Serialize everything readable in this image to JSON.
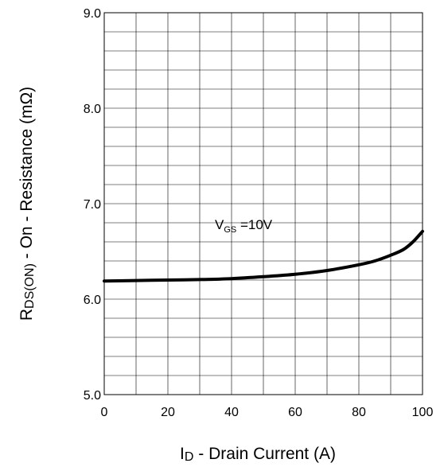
{
  "chart_data": {
    "type": "line",
    "title": "",
    "xlabel": {
      "main": "I",
      "sub": "D",
      "rest": " - Drain Current (A)"
    },
    "ylabel": {
      "main": "R",
      "sub": "DS(ON)",
      "rest": " - On - Resistance (mΩ)"
    },
    "xlim": [
      0,
      100
    ],
    "ylim": [
      5.0,
      9.0
    ],
    "x_ticks": [
      "0",
      "20",
      "40",
      "60",
      "80",
      "100"
    ],
    "y_ticks": [
      "5.0",
      "6.0",
      "7.0",
      "8.0",
      "9.0"
    ],
    "grid": true,
    "annotation": {
      "main": "V",
      "sub": "GS",
      "rest": " =10V"
    },
    "series": [
      {
        "name": "",
        "x": [
          0,
          10,
          20,
          30,
          40,
          50,
          60,
          70,
          80,
          85,
          90,
          94,
          97,
          100
        ],
        "y": [
          6.19,
          6.195,
          6.2,
          6.205,
          6.215,
          6.235,
          6.26,
          6.3,
          6.36,
          6.4,
          6.46,
          6.52,
          6.6,
          6.71
        ]
      }
    ]
  }
}
